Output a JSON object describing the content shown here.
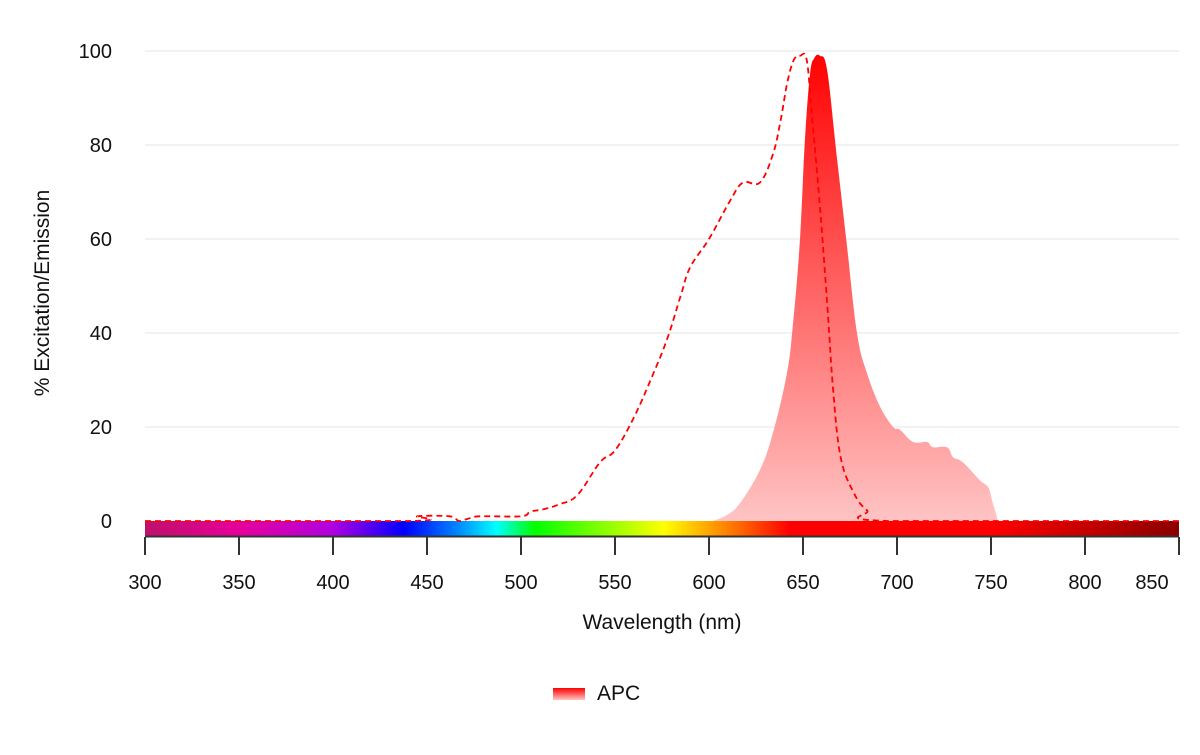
{
  "chart_data": {
    "type": "area",
    "title": "",
    "xlabel": "Wavelength (nm)",
    "ylabel": "% Excitation/Emission",
    "xlim": [
      300,
      850
    ],
    "ylim": [
      0,
      100
    ],
    "xticks": [
      "300",
      "350",
      "400",
      "450",
      "500",
      "550",
      "600",
      "650",
      "700",
      "750",
      "800",
      "850"
    ],
    "yticks": [
      "0",
      "20",
      "40",
      "60",
      "80",
      "100"
    ],
    "grid": true,
    "legend_position": "bottom",
    "legend": [
      "APC"
    ],
    "series": [
      {
        "name": "APC",
        "kind": "excitation",
        "style": "dashed-line",
        "color": "#ff0000",
        "points": [
          [
            300,
            0
          ],
          [
            440,
            0
          ],
          [
            445,
            1
          ],
          [
            462,
            1
          ],
          [
            467,
            0
          ],
          [
            472,
            0.5
          ],
          [
            478,
            1
          ],
          [
            500,
            1
          ],
          [
            505,
            2
          ],
          [
            512,
            2.5
          ],
          [
            520,
            3.5
          ],
          [
            530,
            5.5
          ],
          [
            542,
            12.5
          ],
          [
            550,
            15
          ],
          [
            560,
            22
          ],
          [
            570,
            31
          ],
          [
            578,
            39
          ],
          [
            585,
            48
          ],
          [
            590,
            54
          ],
          [
            600,
            60
          ],
          [
            611,
            68
          ],
          [
            618,
            72
          ],
          [
            627,
            72
          ],
          [
            634,
            78
          ],
          [
            638,
            85
          ],
          [
            641.5,
            93
          ],
          [
            645,
            98
          ],
          [
            648.5,
            99
          ],
          [
            652,
            98
          ],
          [
            655,
            85
          ],
          [
            659,
            67
          ],
          [
            663,
            45.5
          ],
          [
            666,
            28
          ],
          [
            670,
            13.6
          ],
          [
            677,
            6
          ],
          [
            684,
            2.3
          ],
          [
            695,
            0
          ],
          [
            850,
            0
          ]
        ]
      },
      {
        "name": "APC",
        "kind": "emission",
        "style": "filled-area",
        "color": "#ff0000",
        "color_low": "#ffc4c4",
        "points": [
          [
            600,
            0
          ],
          [
            602,
            0
          ],
          [
            609.6,
            1.3
          ],
          [
            616.5,
            3.8
          ],
          [
            627,
            10.8
          ],
          [
            634,
            18.7
          ],
          [
            641.5,
            31.5
          ],
          [
            644.7,
            42
          ],
          [
            648.4,
            60
          ],
          [
            651,
            81
          ],
          [
            653.7,
            95
          ],
          [
            656,
            98.5
          ],
          [
            659,
            99
          ],
          [
            662.8,
            96
          ],
          [
            668,
            77.5
          ],
          [
            673,
            60
          ],
          [
            678.7,
            40
          ],
          [
            684,
            31.5
          ],
          [
            691,
            24.3
          ],
          [
            698,
            20
          ],
          [
            701.6,
            19.4
          ],
          [
            708.5,
            16.8
          ],
          [
            716,
            16.8
          ],
          [
            719,
            15.7
          ],
          [
            726.6,
            15.7
          ],
          [
            729.8,
            13.6
          ],
          [
            735,
            12.5
          ],
          [
            744,
            8.7
          ],
          [
            748.5,
            7.2
          ],
          [
            750.5,
            4.5
          ],
          [
            753.7,
            0
          ]
        ]
      }
    ],
    "spectrum_bar": [
      {
        "nm": 300,
        "color": "#c0106a"
      },
      {
        "nm": 350,
        "color": "#e6009a"
      },
      {
        "nm": 400,
        "color": "#b000e0"
      },
      {
        "nm": 438,
        "color": "#0000ff"
      },
      {
        "nm": 465,
        "color": "#0080ff"
      },
      {
        "nm": 487,
        "color": "#00ffff"
      },
      {
        "nm": 507,
        "color": "#00ff00"
      },
      {
        "nm": 576,
        "color": "#ffff00"
      },
      {
        "nm": 610,
        "color": "#ff8000"
      },
      {
        "nm": 643,
        "color": "#ff0000"
      },
      {
        "nm": 750,
        "color": "#ff0000"
      },
      {
        "nm": 850,
        "color": "#8b0000"
      }
    ]
  }
}
